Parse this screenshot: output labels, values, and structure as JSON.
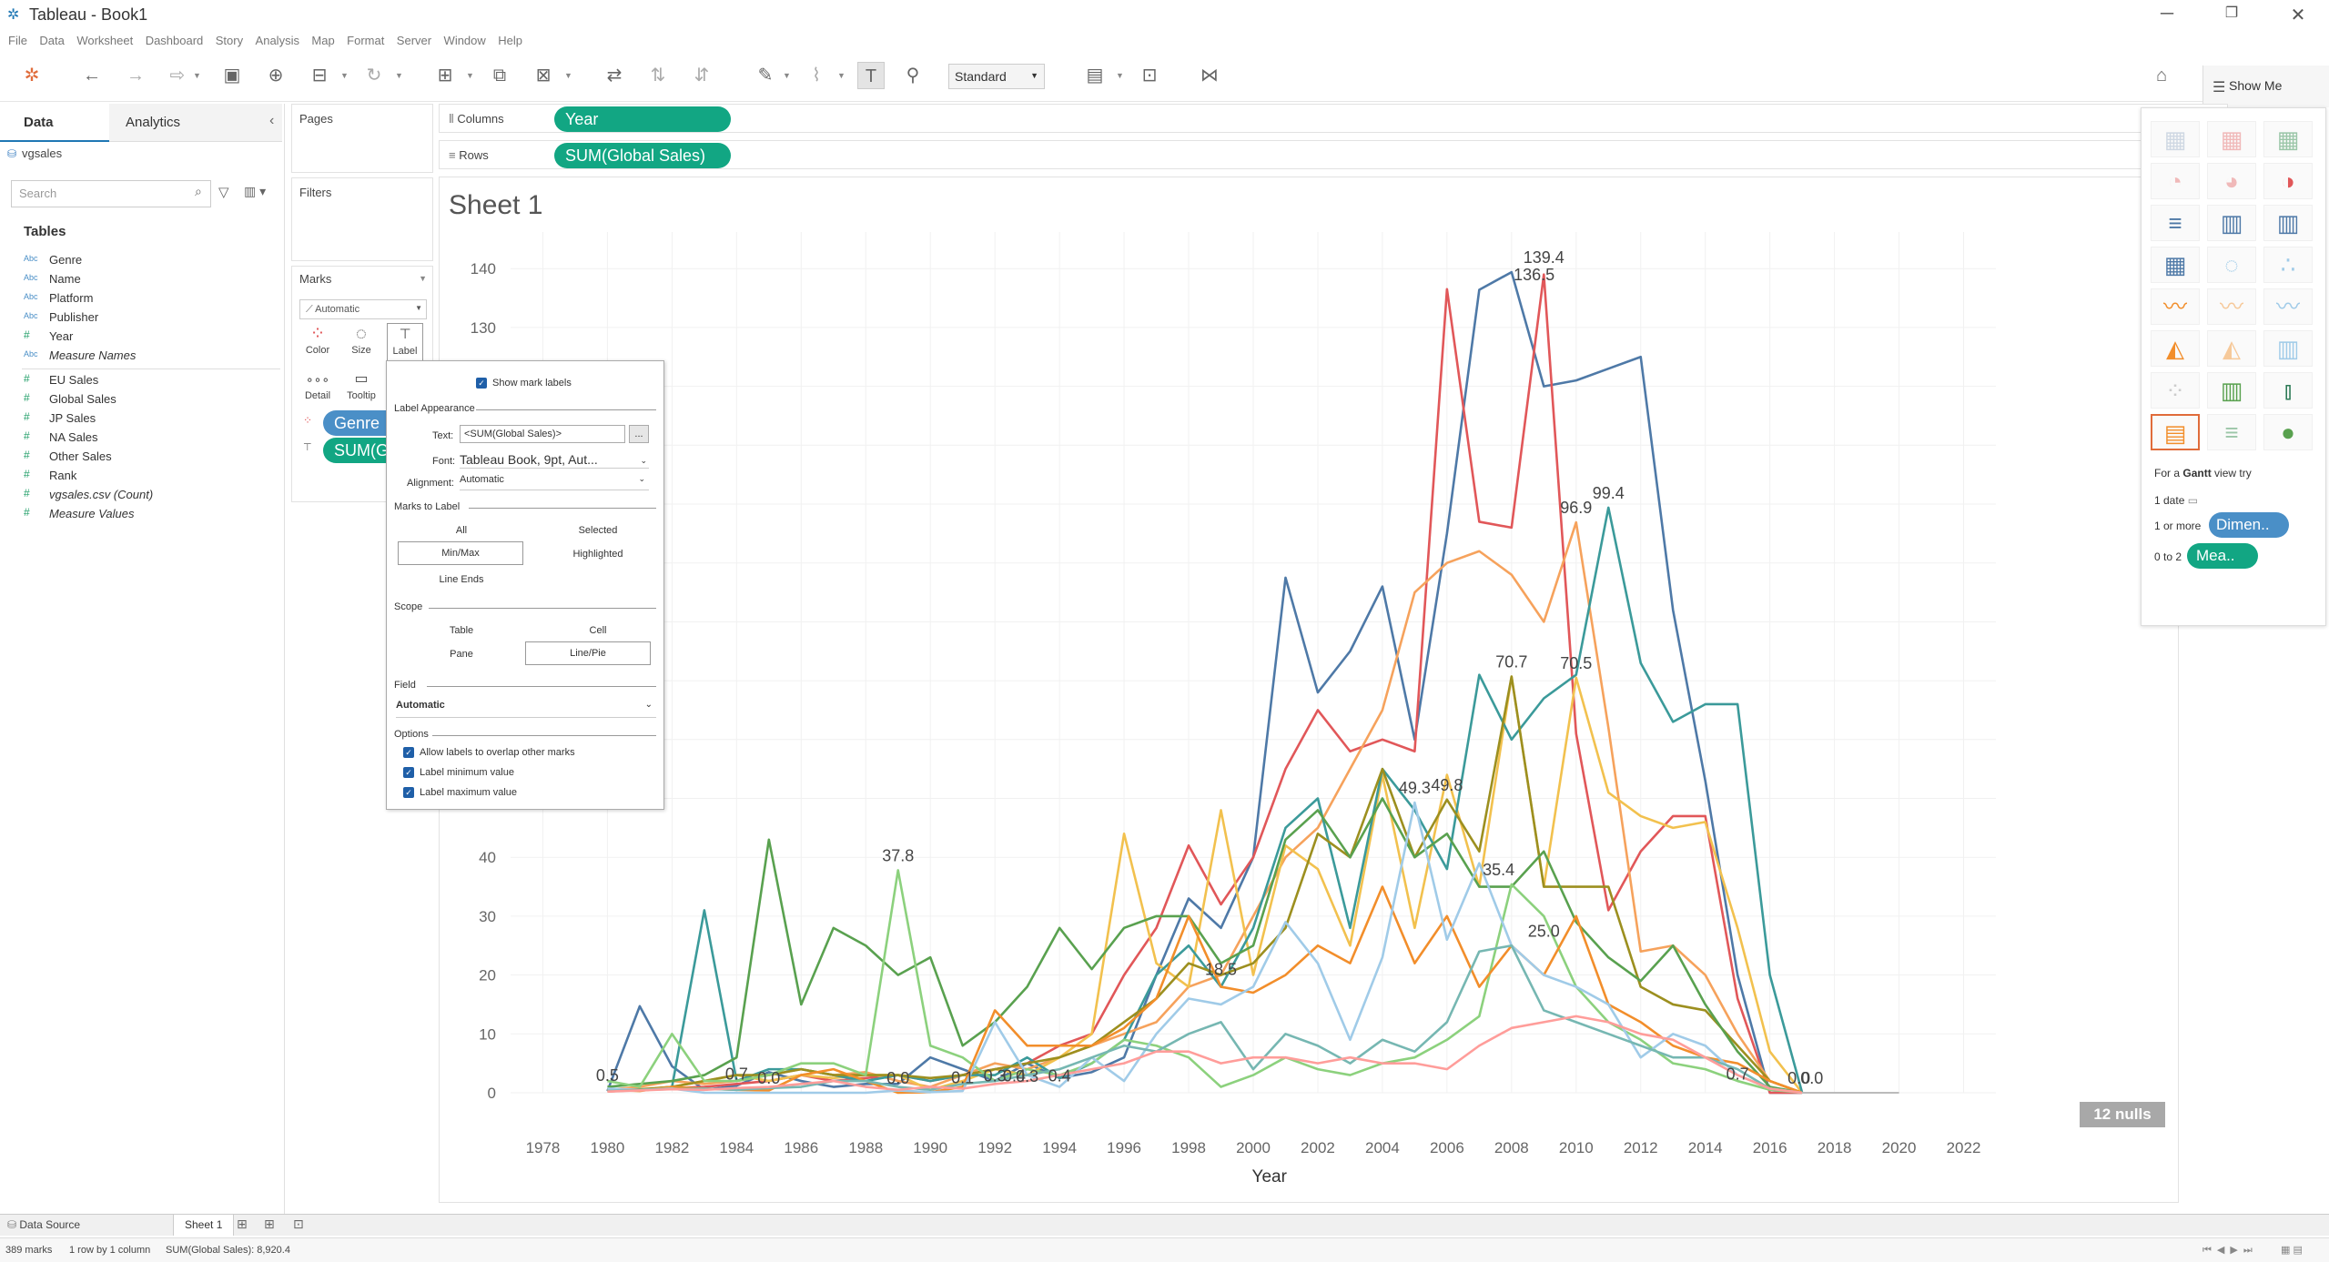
{
  "window": {
    "title": "Tableau - Book1"
  },
  "menu": [
    "File",
    "Data",
    "Worksheet",
    "Dashboard",
    "Story",
    "Analysis",
    "Map",
    "Format",
    "Server",
    "Window",
    "Help"
  ],
  "toolbar": {
    "fit_mode": "Standard",
    "show_me_label": "Show Me"
  },
  "data_pane": {
    "tab_data": "Data",
    "tab_analytics": "Analytics",
    "datasource": "vgsales",
    "search_placeholder": "Search",
    "tables_heading": "Tables",
    "dimensions": [
      {
        "icon": "Abc",
        "name": "Genre"
      },
      {
        "icon": "Abc",
        "name": "Name"
      },
      {
        "icon": "Abc",
        "name": "Platform"
      },
      {
        "icon": "Abc",
        "name": "Publisher"
      },
      {
        "icon": "#",
        "name": "Year"
      },
      {
        "icon": "Abc",
        "name": "Measure Names"
      }
    ],
    "measures": [
      {
        "icon": "#",
        "name": "EU Sales"
      },
      {
        "icon": "#",
        "name": "Global Sales"
      },
      {
        "icon": "#",
        "name": "JP Sales"
      },
      {
        "icon": "#",
        "name": "NA Sales"
      },
      {
        "icon": "#",
        "name": "Other Sales"
      },
      {
        "icon": "#",
        "name": "Rank"
      },
      {
        "icon": "#",
        "name": "vgsales.csv (Count)"
      },
      {
        "icon": "#",
        "name": "Measure Values"
      }
    ]
  },
  "cards": {
    "pages": "Pages",
    "filters": "Filters",
    "marks": "Marks",
    "marks_type": "Automatic",
    "marks_buttons": [
      "Color",
      "Size",
      "Label",
      "Detail",
      "Tooltip"
    ],
    "pill_genre": "Genre",
    "pill_sum": "SUM(G"
  },
  "shelves": {
    "columns_label": "Columns",
    "columns_pill": "Year",
    "rows_label": "Rows",
    "rows_pill": "SUM(Global Sales)"
  },
  "sheet": {
    "title": "Sheet 1",
    "nulls_badge": "12 nulls"
  },
  "label_popup": {
    "show_mark_labels": "Show mark labels",
    "label_appearance": "Label Appearance",
    "text_label": "Text:",
    "text_value": "<SUM(Global Sales)>",
    "font_label": "Font:",
    "font_value": "Tableau Book, 9pt, Aut...",
    "alignment_label": "Alignment:",
    "alignment_value": "Automatic",
    "marks_to_label": "Marks to Label",
    "opt_all": "All",
    "opt_selected": "Selected",
    "opt_minmax": "Min/Max",
    "opt_highlighted": "Highlighted",
    "opt_line_ends": "Line Ends",
    "scope": "Scope",
    "opt_table": "Table",
    "opt_cell": "Cell",
    "opt_pane": "Pane",
    "opt_linepie": "Line/Pie",
    "field": "Field",
    "field_value": "Automatic",
    "options": "Options",
    "opt_overlap": "Allow labels to overlap other marks",
    "opt_min": "Label minimum value",
    "opt_max": "Label maximum value",
    "ellipsis": "..."
  },
  "show_me": {
    "hint_prefix": "For a",
    "hint_bold": "Gantt",
    "hint_suffix": "view try",
    "req1": "1 date",
    "req2": "1 or more",
    "req2_pill": "Dimen..",
    "req3": "0 to 2",
    "req3_pill": "Mea.."
  },
  "bottom": {
    "data_source_tab": "Data Source",
    "sheet_tab": "Sheet 1",
    "status_marks": "389 marks",
    "status_rows": "1 row by 1 column",
    "status_sum": "SUM(Global Sales): 8,920.4"
  },
  "chart_data": {
    "type": "line",
    "title": "",
    "xlabel": "Year",
    "ylabel": "",
    "xlim": [
      1977,
      2023
    ],
    "ylim": [
      0,
      145
    ],
    "x_ticks": [
      1978,
      1980,
      1982,
      1984,
      1986,
      1988,
      1990,
      1992,
      1994,
      1996,
      1998,
      2000,
      2002,
      2004,
      2006,
      2008,
      2010,
      2012,
      2014,
      2016,
      2018,
      2020,
      2022
    ],
    "y_ticks": [
      0,
      10,
      20,
      30,
      40,
      130,
      140
    ],
    "grid": true,
    "x": [
      1980,
      1981,
      1982,
      1983,
      1984,
      1985,
      1986,
      1987,
      1988,
      1989,
      1990,
      1991,
      1992,
      1993,
      1994,
      1995,
      1996,
      1997,
      1998,
      1999,
      2000,
      2001,
      2002,
      2003,
      2004,
      2005,
      2006,
      2007,
      2008,
      2009,
      2010,
      2011,
      2012,
      2013,
      2014,
      2015,
      2016,
      2017
    ],
    "series": [
      {
        "color": "#4e79a7",
        "values": [
          0.3,
          14.7,
          4.5,
          0.5,
          1.2,
          3.5,
          2.0,
          1.0,
          1.5,
          1.5,
          6.0,
          4.0,
          2.0,
          5.0,
          2.5,
          3.5,
          6.0,
          20.0,
          33.0,
          28.0,
          40.0,
          87.5,
          68.0,
          75.0,
          86.0,
          60.0,
          95.0,
          136.4,
          139.4,
          120.0,
          121.0,
          123.0,
          125.0,
          82.0,
          53.0,
          20.0,
          0.0,
          0.0
        ]
      },
      {
        "color": "#e15759",
        "values": [
          0.2,
          0.5,
          0.8,
          1.0,
          1.5,
          2.0,
          3.0,
          2.0,
          2.5,
          3.0,
          2.0,
          3.0,
          4.0,
          5.0,
          8.0,
          10.0,
          20.0,
          28.0,
          42.0,
          32.0,
          40.0,
          55.0,
          65.0,
          58.0,
          60.0,
          58.0,
          136.5,
          97.0,
          96.0,
          139.0,
          61.0,
          31.0,
          41.0,
          47.0,
          47.0,
          16.0,
          0.0,
          0.0
        ]
      },
      {
        "color": "#f6a25c",
        "values": [
          0.5,
          1.0,
          2.0,
          1.5,
          2.0,
          3.0,
          4.0,
          3.0,
          3.5,
          2.0,
          1.0,
          3.0,
          5.0,
          4.0,
          6.0,
          8.0,
          10.0,
          12.0,
          18.0,
          20.0,
          30.0,
          40.0,
          45.0,
          55.0,
          65.0,
          85.0,
          90.0,
          92.0,
          88.0,
          80.0,
          96.9,
          62.0,
          24.0,
          25.0,
          20.0,
          10.0,
          2.0,
          0.0
        ]
      },
      {
        "color": "#f2c14e",
        "values": [
          0.5,
          0.5,
          1.0,
          2.0,
          3.0,
          2.0,
          3.0,
          2.5,
          3.0,
          3.0,
          0.5,
          2.0,
          4.0,
          3.0,
          6.0,
          10.0,
          44.0,
          22.0,
          18.0,
          48.0,
          20.0,
          42.0,
          38.0,
          25.0,
          54.0,
          28.0,
          54.0,
          35.0,
          70.7,
          35.0,
          70.5,
          51.0,
          47.0,
          45.0,
          46.0,
          28.0,
          7.0,
          0.0
        ]
      },
      {
        "color": "#3b9a9a",
        "values": [
          0.3,
          0.5,
          1.0,
          31.0,
          2.0,
          4.0,
          4.0,
          3.0,
          2.0,
          3.0,
          2.0,
          3.0,
          3.0,
          6.0,
          2.5,
          5.0,
          9.0,
          20.0,
          25.0,
          18.0,
          28.0,
          45.0,
          50.0,
          28.0,
          55.0,
          48.0,
          38.0,
          71.0,
          60.0,
          67.0,
          71.0,
          99.4,
          73.0,
          63.0,
          66.0,
          66.0,
          20.0,
          0.0
        ]
      },
      {
        "color": "#9c8f1f",
        "values": [
          0.3,
          0.6,
          1.0,
          2.0,
          3.0,
          3.0,
          4.0,
          3.0,
          3.0,
          3.0,
          2.5,
          3.0,
          4.0,
          5.0,
          6.0,
          8.0,
          12.0,
          16.0,
          22.0,
          20.0,
          22.0,
          28.0,
          44.0,
          40.0,
          55.0,
          40.0,
          49.8,
          41.0,
          70.7,
          35.0,
          35.0,
          35.0,
          18.0,
          15.0,
          14.0,
          8.0,
          2.0,
          0.0
        ]
      },
      {
        "color": "#59a14f",
        "values": [
          1.0,
          1.5,
          2.0,
          3.0,
          6.0,
          43.0,
          15.0,
          28.0,
          25.0,
          20.0,
          23.0,
          8.0,
          12.0,
          18.0,
          28.0,
          21.0,
          28.0,
          30.0,
          30.0,
          22.0,
          25.0,
          43.0,
          48.0,
          40.0,
          50.0,
          40.0,
          44.0,
          35.0,
          35.0,
          41.0,
          29.0,
          23.0,
          19.0,
          25.0,
          15.0,
          7.0,
          1.0,
          0.0
        ]
      },
      {
        "color": "#8cd17d",
        "values": [
          2.0,
          1.0,
          10.0,
          2.0,
          2.0,
          3.0,
          5.0,
          5.0,
          3.0,
          37.8,
          8.0,
          6.0,
          2.0,
          4.0,
          3.0,
          5.0,
          9.0,
          8.0,
          6.0,
          1.0,
          3.0,
          6.0,
          4.0,
          3.0,
          5.0,
          6.0,
          9.0,
          13.0,
          35.4,
          30.0,
          18.0,
          12.0,
          9.0,
          5.0,
          4.0,
          2.0,
          0.5,
          0.0
        ]
      },
      {
        "color": "#f28e2b",
        "values": [
          0.5,
          0.3,
          1.0,
          0.7,
          0.5,
          0.4,
          3.0,
          4.0,
          2.0,
          0.0,
          0.1,
          1.0,
          14.0,
          8.0,
          8.0,
          8.0,
          11.0,
          16.0,
          30.0,
          18.0,
          17.0,
          20.0,
          25.0,
          22.0,
          35.0,
          22.0,
          30.0,
          18.0,
          25.0,
          20.0,
          30.0,
          15.0,
          12.0,
          8.0,
          6.0,
          5.0,
          2.0,
          0.0
        ]
      },
      {
        "color": "#a0cbe8",
        "values": [
          0.7,
          0.5,
          0.7,
          0.0,
          0.0,
          0.0,
          0.0,
          0.0,
          0.0,
          0.4,
          0.1,
          0.3,
          12.0,
          3.0,
          1.0,
          6.0,
          2.0,
          10.0,
          16.0,
          15.0,
          18.0,
          29.0,
          22.0,
          9.0,
          23.0,
          49.3,
          26.0,
          39.0,
          25.0,
          20.0,
          18.0,
          15.0,
          6.0,
          10.0,
          8.0,
          3.0,
          0.7,
          0.0
        ]
      },
      {
        "color": "#76b7b2",
        "values": [
          0.3,
          0.5,
          0.6,
          0.7,
          0.5,
          0.8,
          1.0,
          2.0,
          2.0,
          1.0,
          0.5,
          1.5,
          2.0,
          3.0,
          4.0,
          6.0,
          8.0,
          7.0,
          10.0,
          12.0,
          4.0,
          10.0,
          8.0,
          5.0,
          9.0,
          7.0,
          12.0,
          24.0,
          25.0,
          14.0,
          12.0,
          10.0,
          8.0,
          6.0,
          6.0,
          4.0,
          0.7,
          0.0
        ]
      },
      {
        "color": "#ff9d9a",
        "values": [
          0.2,
          0.4,
          0.6,
          0.5,
          0.8,
          1.0,
          1.5,
          2.0,
          1.0,
          0.5,
          1.0,
          0.7,
          1.5,
          2.0,
          3.0,
          4.0,
          5.0,
          7.0,
          7.0,
          5.0,
          6.0,
          6.0,
          5.0,
          6.0,
          5.0,
          5.0,
          4.0,
          8.0,
          11.0,
          12.0,
          13.0,
          12.0,
          10.0,
          9.0,
          6.0,
          3.0,
          0.7,
          0.0
        ]
      }
    ],
    "data_labels": [
      {
        "x": 1980,
        "y": 0.5,
        "text": "0.5"
      },
      {
        "x": 1984,
        "y": 0.7,
        "text": "0.7"
      },
      {
        "x": 1985,
        "y": 0.0,
        "text": "0.0"
      },
      {
        "x": 1989,
        "y": 37.8,
        "text": "37.8"
      },
      {
        "x": 1989,
        "y": 0.0,
        "text": "0.0"
      },
      {
        "x": 1991,
        "y": 0.1,
        "text": "0.1"
      },
      {
        "x": 1992,
        "y": 0.4,
        "text": "0.3"
      },
      {
        "x": 1992.6,
        "y": 0.4,
        "text": "0.4"
      },
      {
        "x": 1993,
        "y": 0.3,
        "text": "0.3"
      },
      {
        "x": 1994,
        "y": 0.4,
        "text": "0.4"
      },
      {
        "x": 1999,
        "y": 18.5,
        "text": "18.5"
      },
      {
        "x": 2005,
        "y": 49.3,
        "text": "49.3"
      },
      {
        "x": 2006,
        "y": 49.8,
        "text": "49.8"
      },
      {
        "x": 2008,
        "y": 70.7,
        "text": "70.7"
      },
      {
        "x": 2007.6,
        "y": 35.4,
        "text": "35.4"
      },
      {
        "x": 2009,
        "y": 25.0,
        "text": "25.0"
      },
      {
        "x": 2009,
        "y": 139.4,
        "text": "139.4"
      },
      {
        "x": 2008.7,
        "y": 136.5,
        "text": "136.5"
      },
      {
        "x": 2010,
        "y": 96.9,
        "text": "96.9"
      },
      {
        "x": 2010,
        "y": 70.5,
        "text": "70.5"
      },
      {
        "x": 2011,
        "y": 99.4,
        "text": "99.4"
      },
      {
        "x": 2015,
        "y": 0.7,
        "text": "0.7"
      },
      {
        "x": 2016.9,
        "y": 0.0,
        "text": "0.0"
      },
      {
        "x": 2017.3,
        "y": 0.0,
        "text": "0.0"
      }
    ]
  }
}
